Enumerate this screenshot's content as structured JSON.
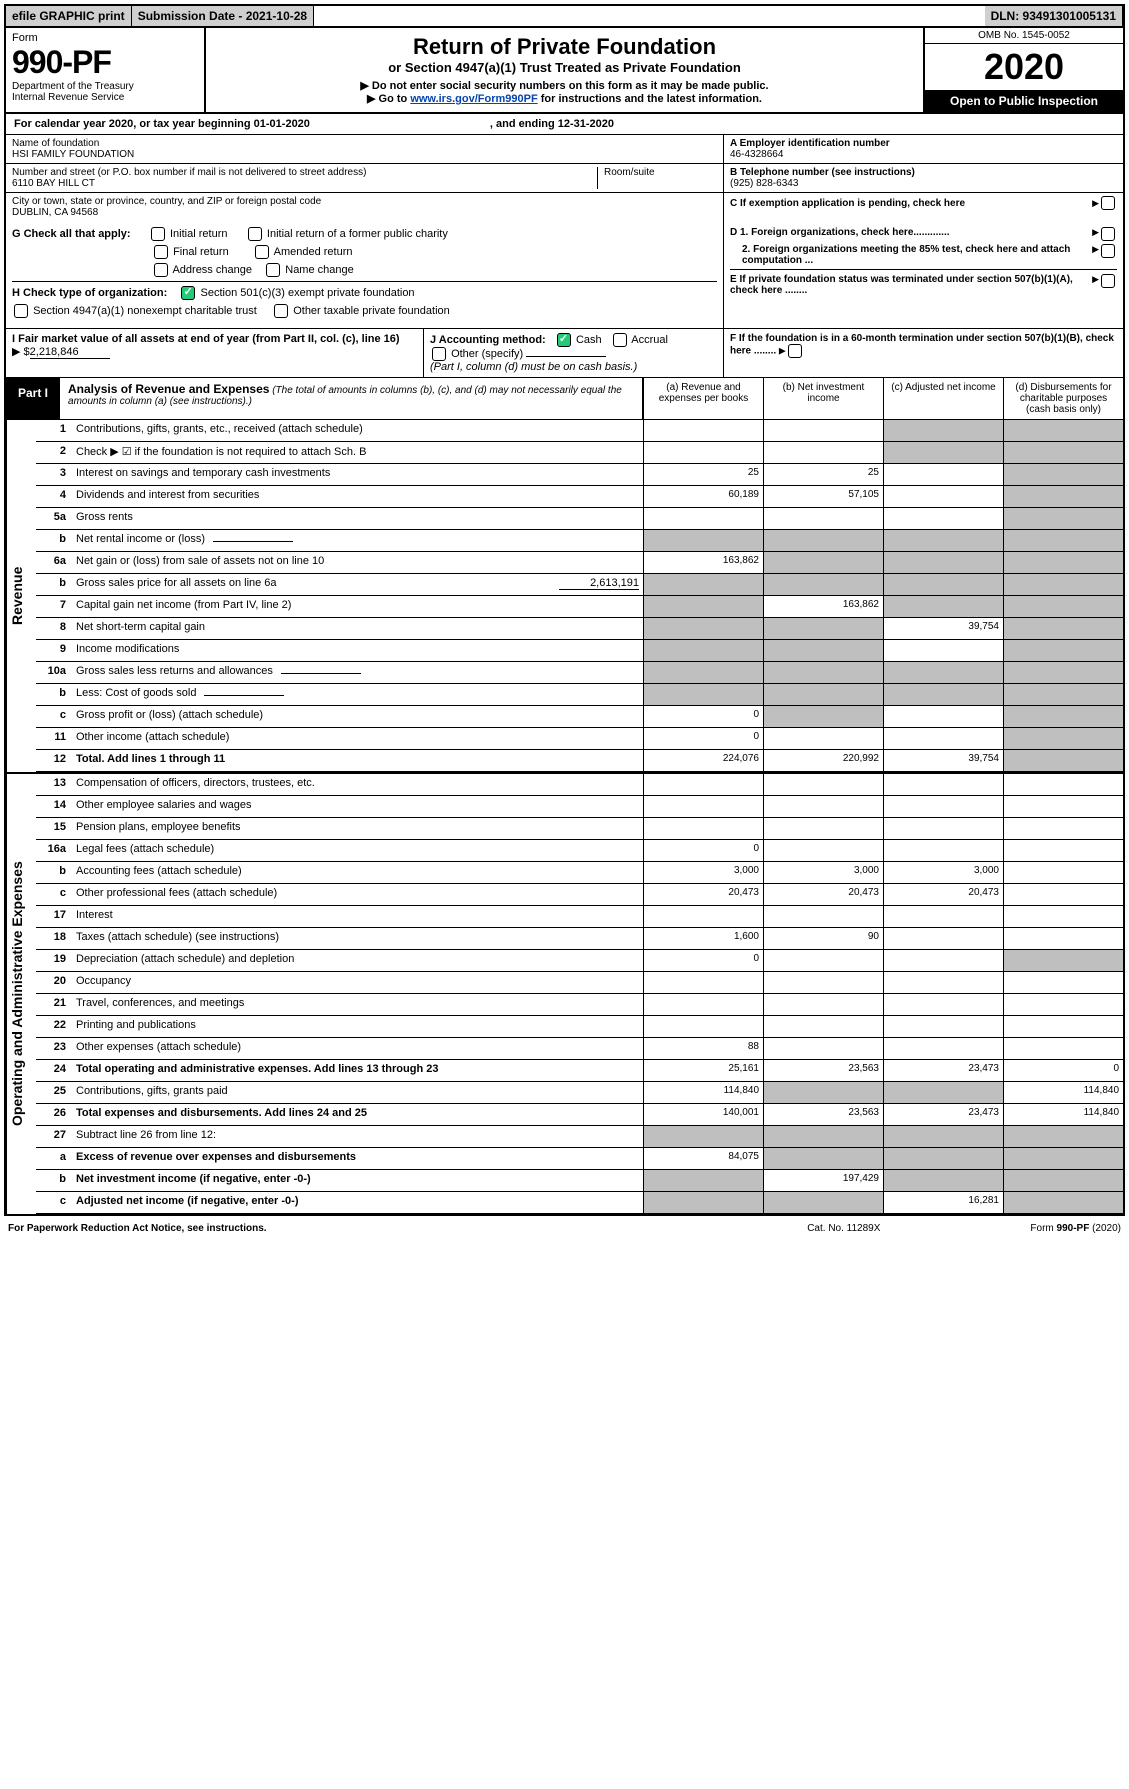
{
  "topbar": {
    "efile": "efile GRAPHIC print",
    "subdate": "Submission Date - 2021-10-28",
    "dln": "DLN: 93491301005131"
  },
  "header": {
    "form_label": "Form",
    "formno": "990-PF",
    "dept1": "Department of the Treasury",
    "dept2": "Internal Revenue Service",
    "title": "Return of Private Foundation",
    "subtitle": "or Section 4947(a)(1) Trust Treated as Private Foundation",
    "instr1": "▶ Do not enter social security numbers on this form as it may be made public.",
    "instr2_pre": "▶ Go to ",
    "instr2_link": "www.irs.gov/Form990PF",
    "instr2_post": " for instructions and the latest information.",
    "omb": "OMB No. 1545-0052",
    "year": "2020",
    "open": "Open to Public Inspection"
  },
  "calyear": {
    "begin_label": "For calendar year 2020, or tax year beginning 01-01-2020",
    "end_label": ", and ending 12-31-2020"
  },
  "id": {
    "name_lbl": "Name of foundation",
    "name": "HSI FAMILY FOUNDATION",
    "addr_lbl": "Number and street (or P.O. box number if mail is not delivered to street address)",
    "addr": "6110 BAY HILL CT",
    "room_lbl": "Room/suite",
    "city_lbl": "City or town, state or province, country, and ZIP or foreign postal code",
    "city": "DUBLIN, CA  94568",
    "ein_lbl": "A Employer identification number",
    "ein": "46-4328664",
    "tel_lbl": "B Telephone number (see instructions)",
    "tel": "(925) 828-6343",
    "c_lbl": "C If exemption application is pending, check here"
  },
  "g": {
    "label": "G Check all that apply:",
    "initial": "Initial return",
    "initial_former": "Initial return of a former public charity",
    "final": "Final return",
    "amended": "Amended return",
    "address": "Address change",
    "name": "Name change"
  },
  "h": {
    "label": "H Check type of organization:",
    "opt1": "Section 501(c)(3) exempt private foundation",
    "opt2": "Section 4947(a)(1) nonexempt charitable trust",
    "opt3": "Other taxable private foundation"
  },
  "i": {
    "label": "I Fair market value of all assets at end of year (from Part II, col. (c), line 16)",
    "value_pre": "▶ $",
    "value": "2,218,846"
  },
  "j": {
    "label": "J Accounting method:",
    "cash": "Cash",
    "accrual": "Accrual",
    "other": "Other (specify)",
    "note": "(Part I, column (d) must be on cash basis.)"
  },
  "d": {
    "d1": "D 1. Foreign organizations, check here.............",
    "d2": "2. Foreign organizations meeting the 85% test, check here and attach computation ...",
    "e": "E  If private foundation status was terminated under section 507(b)(1)(A), check here ........",
    "f": "F  If the foundation is in a 60-month termination under section 507(b)(1)(B), check here ........"
  },
  "part1": {
    "tab": "Part I",
    "title": "Analysis of Revenue and Expenses",
    "sub": "(The total of amounts in columns (b), (c), and (d) may not necessarily equal the amounts in column (a) (see instructions).)",
    "col_a": "(a)   Revenue and expenses per books",
    "col_b": "(b)  Net investment income",
    "col_c": "(c)  Adjusted net income",
    "col_d": "(d)  Disbursements for charitable purposes (cash basis only)"
  },
  "sidelabels": {
    "revenue": "Revenue",
    "expenses": "Operating and Administrative Expenses"
  },
  "rows": [
    {
      "n": "1",
      "d": "Contributions, gifts, grants, etc., received (attach schedule)",
      "a": "",
      "b": "",
      "c": "g",
      "dd": "g"
    },
    {
      "n": "2",
      "d": "Check ▶ ☑ if the foundation is not required to attach Sch. B",
      "a": "",
      "b": "",
      "c": "g",
      "dd": "g",
      "nb": true
    },
    {
      "n": "3",
      "d": "Interest on savings and temporary cash investments",
      "a": "25",
      "b": "25",
      "c": "",
      "dd": "g"
    },
    {
      "n": "4",
      "d": "Dividends and interest from securities",
      "a": "60,189",
      "b": "57,105",
      "c": "",
      "dd": "g"
    },
    {
      "n": "5a",
      "d": "Gross rents",
      "a": "",
      "b": "",
      "c": "",
      "dd": "g"
    },
    {
      "n": "b",
      "d": "Net rental income or (loss)",
      "a": "g",
      "b": "g",
      "c": "g",
      "dd": "g",
      "inline": true
    },
    {
      "n": "6a",
      "d": "Net gain or (loss) from sale of assets not on line 10",
      "a": "163,862",
      "b": "g",
      "c": "g",
      "dd": "g"
    },
    {
      "n": "b",
      "d": "Gross sales price for all assets on line 6a",
      "a": "g",
      "b": "g",
      "c": "g",
      "dd": "g",
      "val": "2,613,191"
    },
    {
      "n": "7",
      "d": "Capital gain net income (from Part IV, line 2)",
      "a": "g",
      "b": "163,862",
      "c": "g",
      "dd": "g"
    },
    {
      "n": "8",
      "d": "Net short-term capital gain",
      "a": "g",
      "b": "g",
      "c": "39,754",
      "dd": "g"
    },
    {
      "n": "9",
      "d": "Income modifications",
      "a": "g",
      "b": "g",
      "c": "",
      "dd": "g"
    },
    {
      "n": "10a",
      "d": "Gross sales less returns and allowances",
      "a": "g",
      "b": "g",
      "c": "g",
      "dd": "g",
      "inline": true
    },
    {
      "n": "b",
      "d": "Less: Cost of goods sold",
      "a": "g",
      "b": "g",
      "c": "g",
      "dd": "g",
      "inline": true
    },
    {
      "n": "c",
      "d": "Gross profit or (loss) (attach schedule)",
      "a": "0",
      "b": "g",
      "c": "",
      "dd": "g"
    },
    {
      "n": "11",
      "d": "Other income (attach schedule)",
      "a": "0",
      "b": "",
      "c": "",
      "dd": "g"
    },
    {
      "n": "12",
      "d": "Total. Add lines 1 through 11",
      "a": "224,076",
      "b": "220,992",
      "c": "39,754",
      "dd": "g",
      "bold": true
    }
  ],
  "rows2": [
    {
      "n": "13",
      "d": "Compensation of officers, directors, trustees, etc.",
      "a": "",
      "b": "",
      "c": "",
      "dd": ""
    },
    {
      "n": "14",
      "d": "Other employee salaries and wages",
      "a": "",
      "b": "",
      "c": "",
      "dd": ""
    },
    {
      "n": "15",
      "d": "Pension plans, employee benefits",
      "a": "",
      "b": "",
      "c": "",
      "dd": ""
    },
    {
      "n": "16a",
      "d": "Legal fees (attach schedule)",
      "a": "0",
      "b": "",
      "c": "",
      "dd": ""
    },
    {
      "n": "b",
      "d": "Accounting fees (attach schedule)",
      "a": "3,000",
      "b": "3,000",
      "c": "3,000",
      "dd": ""
    },
    {
      "n": "c",
      "d": "Other professional fees (attach schedule)",
      "a": "20,473",
      "b": "20,473",
      "c": "20,473",
      "dd": ""
    },
    {
      "n": "17",
      "d": "Interest",
      "a": "",
      "b": "",
      "c": "",
      "dd": ""
    },
    {
      "n": "18",
      "d": "Taxes (attach schedule) (see instructions)",
      "a": "1,600",
      "b": "90",
      "c": "",
      "dd": ""
    },
    {
      "n": "19",
      "d": "Depreciation (attach schedule) and depletion",
      "a": "0",
      "b": "",
      "c": "",
      "dd": "g"
    },
    {
      "n": "20",
      "d": "Occupancy",
      "a": "",
      "b": "",
      "c": "",
      "dd": ""
    },
    {
      "n": "21",
      "d": "Travel, conferences, and meetings",
      "a": "",
      "b": "",
      "c": "",
      "dd": ""
    },
    {
      "n": "22",
      "d": "Printing and publications",
      "a": "",
      "b": "",
      "c": "",
      "dd": ""
    },
    {
      "n": "23",
      "d": "Other expenses (attach schedule)",
      "a": "88",
      "b": "",
      "c": "",
      "dd": ""
    },
    {
      "n": "24",
      "d": "Total operating and administrative expenses. Add lines 13 through 23",
      "a": "25,161",
      "b": "23,563",
      "c": "23,473",
      "dd": "0",
      "bold": true
    },
    {
      "n": "25",
      "d": "Contributions, gifts, grants paid",
      "a": "114,840",
      "b": "g",
      "c": "g",
      "dd": "114,840"
    },
    {
      "n": "26",
      "d": "Total expenses and disbursements. Add lines 24 and 25",
      "a": "140,001",
      "b": "23,563",
      "c": "23,473",
      "dd": "114,840",
      "bold": true
    },
    {
      "n": "27",
      "d": "Subtract line 26 from line 12:",
      "a": "g",
      "b": "g",
      "c": "g",
      "dd": "g"
    },
    {
      "n": "a",
      "d": "Excess of revenue over expenses and disbursements",
      "a": "84,075",
      "b": "g",
      "c": "g",
      "dd": "g",
      "bold": true
    },
    {
      "n": "b",
      "d": "Net investment income (if negative, enter -0-)",
      "a": "g",
      "b": "197,429",
      "c": "g",
      "dd": "g",
      "bold": true
    },
    {
      "n": "c",
      "d": "Adjusted net income (if negative, enter -0-)",
      "a": "g",
      "b": "g",
      "c": "16,281",
      "dd": "g",
      "bold": true
    }
  ],
  "footer": {
    "left": "For Paperwork Reduction Act Notice, see instructions.",
    "mid": "Cat. No. 11289X",
    "right_pre": "Form ",
    "right_bold": "990-PF",
    "right_post": " (2020)"
  },
  "colors": {
    "grey": "#bfbfbf",
    "topgrey": "#cfcfcf",
    "link": "#0645ad",
    "check": "#22cc77"
  }
}
